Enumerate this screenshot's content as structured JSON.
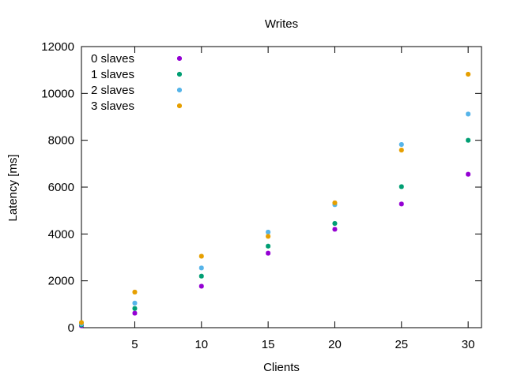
{
  "chart_data": {
    "type": "scatter",
    "title": "Writes",
    "xlabel": "Clients",
    "ylabel": "Latency [ms]",
    "xlim": [
      1,
      31
    ],
    "ylim": [
      0,
      12000
    ],
    "xticks": [
      5,
      10,
      15,
      20,
      25,
      30
    ],
    "yticks": [
      0,
      2000,
      4000,
      6000,
      8000,
      10000,
      12000
    ],
    "grid": false,
    "legend_position": "top-left",
    "x": [
      1,
      5,
      10,
      15,
      20,
      25,
      30
    ],
    "series": [
      {
        "name": "0 slaves",
        "color": "#9400d3",
        "values": [
          80,
          620,
          1770,
          3180,
          4200,
          5280,
          6550
        ]
      },
      {
        "name": "1 slaves",
        "color": "#009e73",
        "values": [
          120,
          820,
          2200,
          3480,
          4450,
          6020,
          8000
        ]
      },
      {
        "name": "2 slaves",
        "color": "#56b4e9",
        "values": [
          160,
          1050,
          2550,
          4080,
          5250,
          7820,
          9120
        ]
      },
      {
        "name": "3 slaves",
        "color": "#e69f00",
        "values": [
          220,
          1520,
          3050,
          3900,
          5330,
          7580,
          10820
        ]
      }
    ]
  }
}
